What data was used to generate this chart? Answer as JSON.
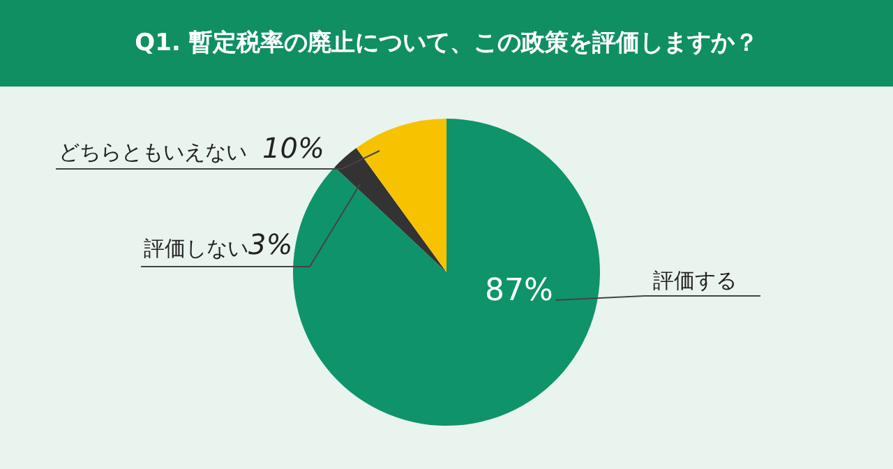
{
  "chart_data": {
    "type": "pie",
    "title": "Q1. 暫定税率の廃止について、この政策を評価しますか？",
    "categories": [
      "評価する",
      "評価しない",
      "どちらともいえない"
    ],
    "values": [
      87,
      3,
      10
    ],
    "colors": [
      "#0f936a",
      "#333333",
      "#f7c300"
    ],
    "value_labels": [
      "87%",
      "3%",
      "10%"
    ]
  }
}
